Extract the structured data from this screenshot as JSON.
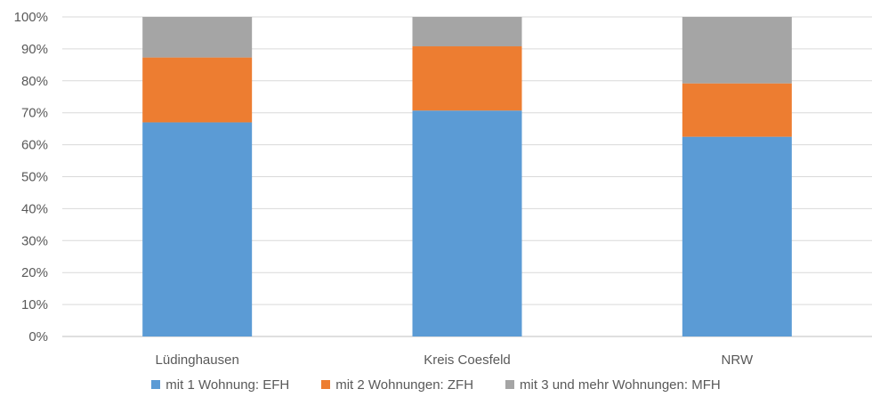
{
  "chart_data": {
    "type": "bar",
    "stacked": true,
    "percent_stacked": true,
    "categories": [
      "Lüdinghausen",
      "Kreis Coesfeld",
      "NRW"
    ],
    "series": [
      {
        "name": "mit 1 Wohnung: EFH",
        "color": "#5B9BD5",
        "values": [
          67,
          70.7,
          62.5
        ]
      },
      {
        "name": "mit 2 Wohnungen: ZFH",
        "color": "#ED7D31",
        "values": [
          20.3,
          20.1,
          16.7
        ]
      },
      {
        "name": "mit 3 und mehr Wohnungen: MFH",
        "color": "#A5A5A5",
        "values": [
          12.7,
          9.2,
          20.8
        ]
      }
    ],
    "yticks": [
      "0%",
      "10%",
      "20%",
      "30%",
      "40%",
      "50%",
      "60%",
      "70%",
      "80%",
      "90%",
      "100%"
    ],
    "ylim": [
      0,
      100
    ],
    "grid": true,
    "legend_position": "bottom"
  }
}
